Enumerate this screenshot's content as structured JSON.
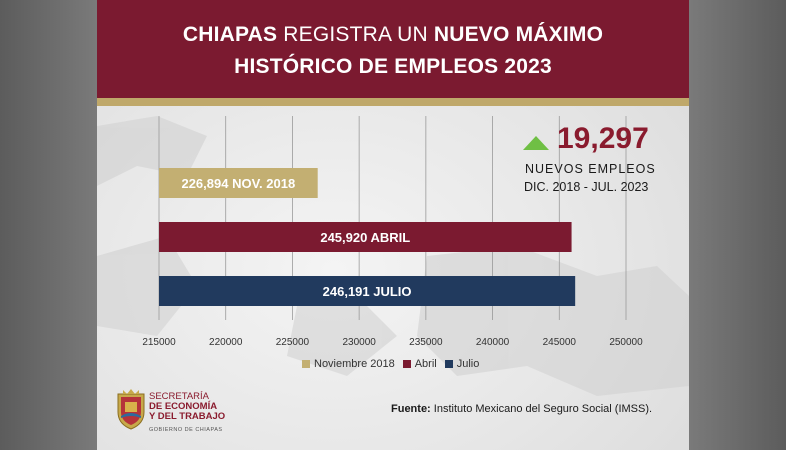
{
  "header": {
    "title_line1_bold_a": "CHIAPAS",
    "title_line1_light": " REGISTRA UN ",
    "title_line1_bold_b": "NUEVO MÁXIMO",
    "title_line2": "HISTÓRICO DE EMPLEOS 2023"
  },
  "kpi": {
    "value": "19,297",
    "label_line1": "NUEVOS  EMPLEOS",
    "label_line2": "DIC. 2018 - JUL. 2023"
  },
  "chart_data": {
    "type": "bar",
    "orientation": "horizontal",
    "categories": [
      "Noviembre 2018",
      "Abril",
      "Julio"
    ],
    "values": [
      226894,
      245920,
      246191
    ],
    "bar_labels": [
      "226,894 NOV. 2018",
      "245,920 ABRIL",
      "246,191 JULIO"
    ],
    "xlim": [
      215000,
      250000
    ],
    "xticks": [
      "215000",
      "220000",
      "225000",
      "230000",
      "235000",
      "240000",
      "245000",
      "250000"
    ],
    "grid": "vertical",
    "legend": "bottom",
    "colors": [
      "#c3af72",
      "#7b1a30",
      "#213a5e"
    ]
  },
  "logo": {
    "line1": "SECRETARÍA",
    "line2": "DE ECONOMÍA",
    "line3": "Y DEL TRABAJO",
    "line4": "GOBIERNO DE CHIAPAS"
  },
  "source": {
    "label": "Fuente:",
    "text": " Instituto Mexicano del Seguro Social (IMSS)."
  }
}
